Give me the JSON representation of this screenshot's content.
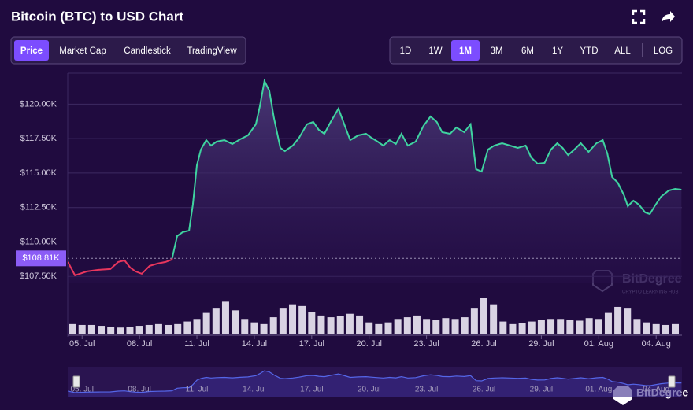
{
  "chart_data": {
    "type": "line",
    "title": "Bitcoin (BTC) to USD Chart",
    "x": [
      4.26,
      4.63,
      5.25,
      5.86,
      6.48,
      6.89,
      7.22,
      7.51,
      7.79,
      8.12,
      8.53,
      8.95,
      9.36,
      9.69,
      9.97,
      10.26,
      10.59,
      10.79,
      11.0,
      11.21,
      11.49,
      11.74,
      12.03,
      12.44,
      12.85,
      13.26,
      13.67,
      14.08,
      14.29,
      14.53,
      14.78,
      15.03,
      15.36,
      15.6,
      16.01,
      16.34,
      16.75,
      17.08,
      17.37,
      17.66,
      17.99,
      18.4,
      18.73,
      19.01,
      19.43,
      19.84,
      20.12,
      20.45,
      20.74,
      21.07,
      21.4,
      21.69,
      22.02,
      22.43,
      22.84,
      23.21,
      23.54,
      23.82,
      24.23,
      24.56,
      24.97,
      25.3,
      25.59,
      25.88,
      26.21,
      26.54,
      26.95,
      27.36,
      27.77,
      28.18,
      28.47,
      28.8,
      29.17,
      29.5,
      29.83,
      30.11,
      30.4,
      30.73,
      31.06,
      31.47,
      31.88,
      32.21,
      32.45,
      32.7,
      32.99,
      33.32,
      33.52,
      33.81,
      34.1,
      34.43,
      34.67,
      34.92,
      35.25,
      35.66,
      35.99,
      36.32
    ],
    "series": [
      {
        "name": "Price",
        "color": "#3fd3a0",
        "down_color": "#e8365d",
        "values": [
          108546,
          107575,
          107861,
          107975,
          108032,
          108546,
          108660,
          108146,
          107861,
          107689,
          108260,
          108432,
          108546,
          108717,
          110430,
          110716,
          110830,
          112714,
          115569,
          116711,
          117396,
          116997,
          117282,
          117396,
          117111,
          117454,
          117739,
          118538,
          119852,
          121679,
          120994,
          118995,
          116825,
          116597,
          116997,
          117568,
          118538,
          118710,
          118139,
          117853,
          118710,
          119680,
          118424,
          117396,
          117739,
          117853,
          117568,
          117282,
          116997,
          117396,
          117111,
          117853,
          116997,
          117282,
          118424,
          119109,
          118710,
          117967,
          117853,
          118310,
          117967,
          118538,
          115284,
          115112,
          116711,
          116997,
          117168,
          116997,
          116825,
          116997,
          116140,
          115683,
          115741,
          116711,
          117168,
          116825,
          116312,
          116711,
          117168,
          116540,
          117168,
          117396,
          116426,
          114713,
          114313,
          113399,
          112600,
          113000,
          112714,
          112143,
          112029,
          112600,
          113285,
          113742,
          113856,
          113799
        ]
      }
    ],
    "baseline": {
      "value": 108810,
      "label": "$108.81K"
    },
    "volume": {
      "x": [
        4.5,
        5,
        5.5,
        6,
        6.5,
        7,
        7.5,
        8,
        8.5,
        9,
        9.5,
        10,
        10.5,
        11,
        11.5,
        12,
        12.5,
        13,
        13.5,
        14,
        14.5,
        15,
        15.5,
        16,
        16.5,
        17,
        17.5,
        18,
        18.5,
        19,
        19.5,
        20,
        20.5,
        21,
        21.5,
        22,
        22.5,
        23,
        23.5,
        24,
        24.5,
        25,
        25.5,
        26,
        26.5,
        27,
        27.5,
        28,
        28.5,
        29,
        29.5,
        30,
        30.5,
        31,
        31.5,
        32,
        32.5,
        33,
        33.5,
        34,
        34.5,
        35,
        35.5,
        36
      ],
      "values": [
        12,
        11,
        11,
        10,
        9,
        8,
        9,
        10,
        11,
        12,
        11,
        12,
        15,
        18,
        25,
        30,
        38,
        28,
        18,
        14,
        12,
        20,
        30,
        35,
        33,
        26,
        22,
        20,
        21,
        24,
        22,
        14,
        12,
        14,
        18,
        20,
        22,
        18,
        17,
        19,
        18,
        20,
        30,
        42,
        35,
        15,
        12,
        13,
        15,
        17,
        18,
        18,
        17,
        16,
        19,
        18,
        25,
        32,
        30,
        18,
        14,
        12,
        11,
        12
      ],
      "color": "#d9d3e3"
    },
    "xlim": [
      4.25,
      36.35
    ],
    "xticks": [
      {
        "value": 5,
        "label": "05. Jul"
      },
      {
        "value": 8,
        "label": "08. Jul"
      },
      {
        "value": 11,
        "label": "11. Jul"
      },
      {
        "value": 14,
        "label": "14. Jul"
      },
      {
        "value": 17,
        "label": "17. Jul"
      },
      {
        "value": 20,
        "label": "20. Jul"
      },
      {
        "value": 23,
        "label": "23. Jul"
      },
      {
        "value": 26,
        "label": "26. Jul"
      },
      {
        "value": 29,
        "label": "29. Jul"
      },
      {
        "value": 32,
        "label": "01. Aug"
      },
      {
        "value": 35,
        "label": "04. Aug"
      }
    ],
    "ylim": [
      107000,
      122250
    ],
    "yticks": [
      {
        "value": 107500,
        "label": "$107.50K"
      },
      {
        "value": 110000,
        "label": "$110.00K"
      },
      {
        "value": 112500,
        "label": "$112.50K"
      },
      {
        "value": 115000,
        "label": "$115.00K"
      },
      {
        "value": 117500,
        "label": "$117.50K"
      },
      {
        "value": 120000,
        "label": "$120.00K"
      }
    ],
    "grid": true
  },
  "toolbar": {
    "chart_types": [
      "Price",
      "Market Cap",
      "Candlestick",
      "TradingView"
    ],
    "active_chart_type": 0,
    "ranges": [
      "1D",
      "1W",
      "1M",
      "3M",
      "6M",
      "1Y",
      "YTD",
      "ALL",
      "LOG"
    ],
    "active_range": 2
  },
  "watermark": {
    "name": "BitDegree",
    "tagline": "CRYPTO LEARNING HUB"
  },
  "logo": {
    "name": "BitDegree"
  }
}
